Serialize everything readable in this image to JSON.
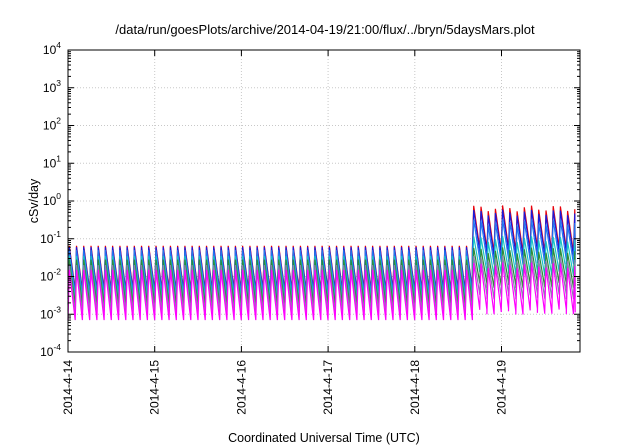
{
  "chart_data": {
    "type": "line",
    "title": "/data/run/goesPlots/archive/2014-04-19/21:00/flux/../bryn/5daysMars.plot",
    "xlabel": "Coordinated Universal Time (UTC)",
    "ylabel": "cSv/day",
    "x_ticks": [
      "2014-4-14",
      "2014-4-15",
      "2014-4-16",
      "2014-4-17",
      "2014-4-18",
      "2014-4-19"
    ],
    "xlim_days": [
      0,
      5.85
    ],
    "ylim": [
      0.0001,
      10000
    ],
    "y_scale": "log",
    "y_ticks": [
      {
        "base": "10",
        "exp": "-4",
        "value": 0.0001
      },
      {
        "base": "10",
        "exp": "-3",
        "value": 0.001
      },
      {
        "base": "10",
        "exp": "-2",
        "value": 0.01
      },
      {
        "base": "10",
        "exp": "-1",
        "value": 0.1
      },
      {
        "base": "10",
        "exp": "0",
        "value": 1
      },
      {
        "base": "10",
        "exp": "1",
        "value": 10
      },
      {
        "base": "10",
        "exp": "2",
        "value": 100
      },
      {
        "base": "10",
        "exp": "3",
        "value": 1000
      },
      {
        "base": "10",
        "exp": "4",
        "value": 10000
      }
    ],
    "grid": true,
    "legend": "none",
    "cycle_days": 0.0833,
    "step_day": 4.6,
    "series": [
      {
        "color": "#e8000b",
        "peak_before": 0.065,
        "trough_before": 0.0045,
        "peak_after": 0.65,
        "trough_after": 0.05
      },
      {
        "color": "#1a1adb",
        "peak_before": 0.06,
        "trough_before": 0.004,
        "peak_after": 0.5,
        "trough_after": 0.04
      },
      {
        "color": "#2277ee",
        "peak_before": 0.05,
        "trough_before": 0.0035,
        "peak_after": 0.28,
        "trough_after": 0.025
      },
      {
        "color": "#19c4c4",
        "peak_before": 0.035,
        "trough_before": 0.0025,
        "peak_after": 0.1,
        "trough_after": 0.012
      },
      {
        "color": "#2e8b3a",
        "peak_before": 0.028,
        "trough_before": 0.0018,
        "peak_after": 0.05,
        "trough_after": 0.006
      },
      {
        "color": "#8a7fb0",
        "peak_before": 0.02,
        "trough_before": 0.0012,
        "peak_after": 0.03,
        "trough_after": 0.003
      },
      {
        "color": "#ff00ff",
        "peak_before": 0.015,
        "trough_before": 0.0007,
        "peak_after": 0.02,
        "trough_after": 0.0012
      }
    ]
  }
}
